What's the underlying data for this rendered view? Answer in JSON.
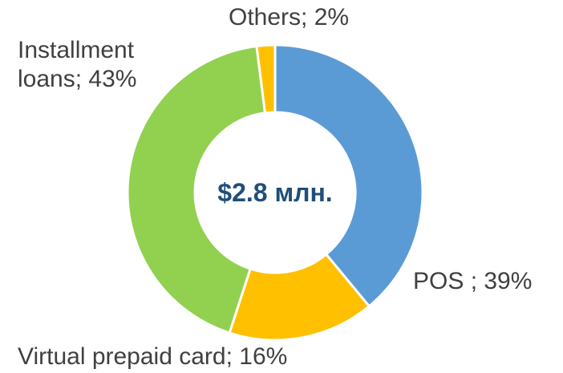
{
  "chart_data": {
    "type": "donut",
    "values": [
      39,
      16,
      43,
      2
    ],
    "value_labels": [
      "POS ; 39%",
      "Virtual prepaid card; 16%",
      "Installment loans; 43%",
      "Others; 2%"
    ],
    "colors": [
      "#5b9bd5",
      "#ffc000",
      "#92d050",
      "#ffc000"
    ],
    "center_label": "$2.8 млн."
  }
}
